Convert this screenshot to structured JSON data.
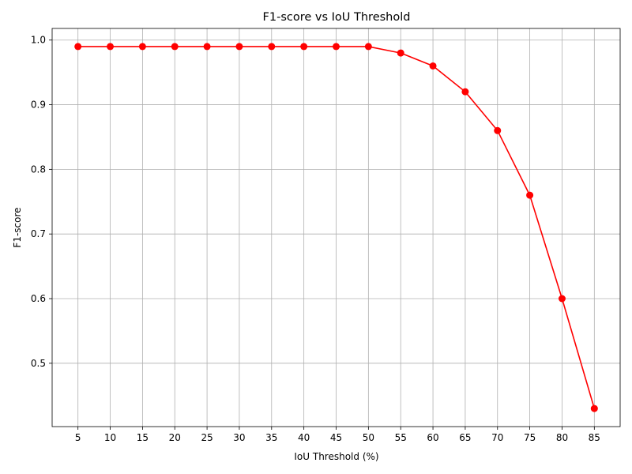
{
  "chart_data": {
    "type": "line",
    "title": "F1-score vs IoU Threshold",
    "xlabel": "IoU Threshold (%)",
    "ylabel": "F1-score",
    "x": [
      5,
      10,
      15,
      20,
      25,
      30,
      35,
      40,
      45,
      50,
      55,
      60,
      65,
      70,
      75,
      80,
      85
    ],
    "series": [
      {
        "values": [
          0.99,
          0.99,
          0.99,
          0.99,
          0.99,
          0.99,
          0.99,
          0.99,
          0.99,
          0.99,
          0.98,
          0.96,
          0.92,
          0.86,
          0.76,
          0.6,
          0.43
        ],
        "color": "#ff0000",
        "marker": "circle"
      }
    ],
    "x_ticks": [
      "5",
      "10",
      "15",
      "20",
      "25",
      "30",
      "35",
      "40",
      "45",
      "50",
      "55",
      "60",
      "65",
      "70",
      "75",
      "80",
      "85"
    ],
    "y_ticks": [
      "0.5",
      "0.6",
      "0.7",
      "0.8",
      "0.9",
      "1.0"
    ],
    "xlim": [
      1,
      89
    ],
    "ylim": [
      0.402,
      1.018
    ],
    "grid": true,
    "legend": "none"
  }
}
